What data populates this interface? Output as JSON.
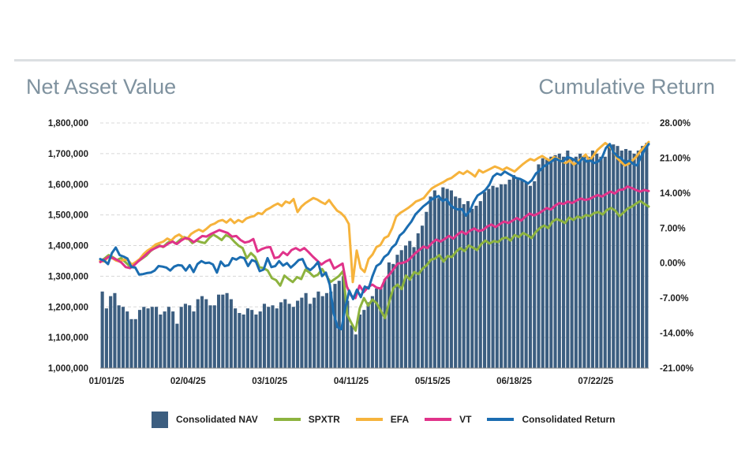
{
  "header": {
    "left_title": "Net Asset Value",
    "right_title": "Cumulative Return"
  },
  "chart_data": {
    "type": "bar+line",
    "x_tick_labels": [
      "01/01/25",
      "02/04/25",
      "03/10/25",
      "04/11/25",
      "05/15/25",
      "06/18/25",
      "07/22/25"
    ],
    "y_left": {
      "min": 1000000,
      "max": 1800000,
      "step": 100000,
      "tick_labels": [
        "1,000,000",
        "1,100,000",
        "1,200,000",
        "1,300,000",
        "1,400,000",
        "1,500,000",
        "1,600,000",
        "1,700,000",
        "1,800,000"
      ]
    },
    "y_right": {
      "min": -21,
      "max": 28,
      "unit": "%",
      "tick_labels": [
        "-21.00%",
        "-14.00%",
        "-7.00%",
        "0.00%",
        "7.00%",
        "14.00%",
        "21.00%",
        "28.00%"
      ]
    },
    "grid": "horizontal dashed",
    "legend_position": "bottom",
    "nav_bar_values": [
      1250000,
      1195000,
      1235000,
      1245000,
      1205000,
      1200000,
      1185000,
      1160000,
      1160000,
      1190000,
      1200000,
      1195000,
      1200000,
      1200000,
      1175000,
      1185000,
      1200000,
      1185000,
      1145000,
      1200000,
      1210000,
      1205000,
      1185000,
      1225000,
      1235000,
      1225000,
      1205000,
      1205000,
      1240000,
      1240000,
      1245000,
      1225000,
      1195000,
      1180000,
      1175000,
      1195000,
      1190000,
      1175000,
      1185000,
      1210000,
      1200000,
      1205000,
      1195000,
      1215000,
      1225000,
      1210000,
      1200000,
      1220000,
      1230000,
      1245000,
      1210000,
      1230000,
      1250000,
      1235000,
      1245000,
      1250000,
      1275000,
      1285000,
      1300000,
      1220000,
      1140000,
      1110000,
      1175000,
      1190000,
      1215000,
      1235000,
      1260000,
      1260000,
      1290000,
      1345000,
      1340000,
      1370000,
      1385000,
      1400000,
      1415000,
      1395000,
      1440000,
      1465000,
      1510000,
      1560000,
      1580000,
      1555000,
      1590000,
      1585000,
      1580000,
      1560000,
      1555000,
      1535000,
      1545000,
      1520000,
      1530000,
      1545000,
      1575000,
      1585000,
      1595000,
      1590000,
      1600000,
      1600000,
      1615000,
      1630000,
      1620000,
      1615000,
      1605000,
      1595000,
      1610000,
      1665000,
      1685000,
      1685000,
      1690000,
      1695000,
      1700000,
      1690000,
      1710000,
      1685000,
      1690000,
      1700000,
      1690000,
      1690000,
      1710000,
      1700000,
      1690000,
      1690000,
      1725000,
      1730000,
      1725000,
      1710000,
      1715000,
      1710000,
      1700000,
      1710000,
      1725000,
      1735000
    ],
    "series": [
      {
        "name": "SPXTR",
        "color": "#8db33f",
        "values": [
          0.4,
          0.9,
          1.6,
          1.2,
          0.6,
          1.0,
          0.2,
          -0.6,
          -0.3,
          0.3,
          0.9,
          1.5,
          2.4,
          3.0,
          3.6,
          3.2,
          4.0,
          4.5,
          3.9,
          4.6,
          5.2,
          4.9,
          4.0,
          4.5,
          4.2,
          4.0,
          5.0,
          5.7,
          5.2,
          4.6,
          5.6,
          5.2,
          4.3,
          3.5,
          3.0,
          1.0,
          2.0,
          1.2,
          -0.8,
          -1.0,
          -1.5,
          -3.0,
          -3.4,
          -4.5,
          -2.5,
          -3.2,
          -3.8,
          -2.8,
          -3.2,
          -1.3,
          -1.9,
          -2.7,
          -2.3,
          -1.2,
          -2.5,
          -3.8,
          -3.2,
          -2.6,
          -1.6,
          -10.3,
          -12.0,
          -13.5,
          -9.0,
          -7.0,
          -8.5,
          -7.3,
          -8.0,
          -9.5,
          -11.0,
          -7.8,
          -5.0,
          -4.3,
          -5.2,
          -2.5,
          -3.3,
          -1.8,
          -2.2,
          -1.1,
          -0.4,
          0.7,
          0.9,
          1.6,
          0.3,
          1.4,
          1.2,
          2.3,
          3.0,
          2.4,
          3.5,
          3.1,
          2.6,
          3.8,
          4.5,
          3.9,
          4.4,
          4.2,
          4.9,
          5.1,
          4.5,
          5.6,
          5.2,
          6.0,
          5.6,
          5.0,
          6.2,
          7.0,
          7.5,
          7.0,
          8.3,
          8.8,
          8.5,
          8.0,
          9.1,
          8.6,
          9.3,
          9.0,
          9.6,
          9.4,
          10.0,
          10.2,
          9.7,
          10.6,
          11.0,
          10.5,
          9.4,
          10.1,
          10.9,
          11.3,
          11.9,
          12.4,
          11.8,
          11.3
        ]
      },
      {
        "name": "EFA",
        "color": "#f6b33c",
        "values": [
          0.5,
          0.3,
          1.2,
          1.0,
          0.5,
          0.3,
          0.7,
          0.6,
          -0.3,
          0.2,
          0.8,
          1.8,
          2.5,
          3.0,
          3.7,
          4.0,
          4.3,
          4.9,
          4.5,
          5.3,
          5.7,
          5.1,
          4.8,
          5.8,
          6.3,
          6.7,
          6.3,
          6.9,
          7.6,
          7.9,
          8.4,
          8.6,
          8.1,
          8.8,
          8.0,
          8.6,
          8.2,
          8.9,
          9.2,
          9.4,
          10.0,
          9.8,
          10.6,
          11.0,
          11.5,
          11.9,
          11.4,
          12.3,
          12.0,
          12.8,
          10.2,
          11.3,
          12.0,
          12.5,
          13.0,
          12.7,
          12.2,
          11.8,
          12.6,
          11.5,
          10.5,
          10.0,
          9.2,
          7.8,
          -3.8,
          2.5,
          -1.0,
          -1.8,
          0.8,
          1.7,
          3.2,
          3.6,
          5.0,
          5.4,
          7.0,
          9.3,
          10.0,
          10.5,
          11.0,
          11.6,
          12.3,
          12.6,
          13.0,
          14.0,
          14.9,
          15.4,
          15.8,
          16.2,
          16.7,
          17.0,
          17.6,
          18.2,
          17.8,
          18.4,
          17.9,
          17.3,
          18.6,
          18.1,
          18.5,
          18.9,
          19.3,
          19.0,
          18.6,
          19.1,
          18.7,
          18.3,
          19.0,
          19.7,
          20.3,
          20.8,
          20.5,
          21.0,
          21.4,
          20.9,
          20.4,
          21.2,
          20.8,
          20.3,
          20.0,
          20.5,
          19.7,
          20.3,
          20.9,
          21.7,
          20.5,
          21.5,
          22.6,
          23.3,
          24.0,
          23.4,
          22.4,
          21.0,
          20.2,
          19.5,
          19.9,
          20.6,
          21.4,
          22.5,
          23.3,
          24.2
        ]
      },
      {
        "name": "VT",
        "color": "#e0338a",
        "values": [
          0.2,
          0.7,
          1.3,
          1.0,
          0.6,
          0.1,
          -0.8,
          -1.0,
          -0.4,
          0.4,
          1.1,
          1.9,
          2.6,
          3.0,
          3.4,
          3.3,
          3.9,
          4.3,
          3.8,
          4.5,
          5.0,
          4.8,
          4.2,
          4.8,
          5.4,
          5.3,
          5.8,
          6.2,
          6.6,
          6.3,
          6.0,
          5.3,
          5.4,
          4.6,
          4.1,
          4.3,
          4.8,
          2.3,
          2.8,
          3.1,
          3.2,
          1.0,
          1.2,
          2.2,
          1.6,
          2.6,
          3.0,
          2.5,
          3.0,
          2.2,
          1.3,
          0.5,
          -0.3,
          0.3,
          0.7,
          -1.1,
          -0.6,
          -0.1,
          -4.7,
          -6.5,
          -7.0,
          -4.5,
          -5.8,
          -4.8,
          -4.3,
          -4.9,
          -5.1,
          -3.2,
          -2.3,
          -1.2,
          -0.1,
          0.0,
          0.3,
          1.0,
          1.9,
          2.6,
          3.3,
          3.0,
          4.0,
          4.7,
          4.3,
          4.8,
          5.4,
          4.9,
          5.7,
          6.3,
          5.8,
          6.5,
          6.9,
          6.4,
          6.6,
          7.3,
          7.7,
          7.2,
          7.8,
          8.3,
          8.0,
          8.5,
          9.0,
          8.5,
          9.3,
          9.9,
          9.5,
          9.9,
          10.4,
          11.0,
          10.7,
          11.5,
          12.0,
          11.8,
          12.3,
          12.0,
          12.5,
          12.9,
          12.6,
          12.8,
          13.2,
          13.6,
          13.3,
          13.8,
          14.3,
          13.9,
          14.6,
          14.7,
          15.3,
          15.0,
          14.6,
          14.3,
          14.6,
          14.4
        ]
      },
      {
        "name": "Consolidated Return",
        "color": "#1b6db1",
        "values": [
          0.8,
          0.5,
          -0.2,
          2.0,
          3.1,
          1.6,
          1.3,
          0.9,
          -0.8,
          -0.9,
          -2.3,
          -2.2,
          -2.0,
          -1.9,
          -1.5,
          -0.6,
          -0.7,
          -0.9,
          -1.5,
          -0.7,
          -0.4,
          -0.5,
          -1.5,
          -0.4,
          -1.8,
          -0.2,
          0.4,
          0.0,
          0.1,
          -0.3,
          -1.9,
          0.3,
          -0.6,
          -0.4,
          1.0,
          0.7,
          1.2,
          1.0,
          -0.6,
          0.6,
          0.3,
          -1.6,
          -1.3,
          1.0,
          -0.8,
          -0.6,
          0.4,
          -0.5,
          0.0,
          -0.9,
          -0.2,
          0.6,
          0.8,
          -0.9,
          -1.4,
          -0.7,
          0.2,
          -2.6,
          -1.9,
          -4.3,
          -10.0,
          -12.8,
          -13.2,
          -9.0,
          -5.5,
          -7.2,
          -5.3,
          -6.8,
          -4.7,
          -5.1,
          -2.6,
          -0.6,
          -0.1,
          1.2,
          1.8,
          3.1,
          3.8,
          5.5,
          6.2,
          7.3,
          8.3,
          9.7,
          10.5,
          11.3,
          11.9,
          12.6,
          13.1,
          13.4,
          12.4,
          12.8,
          11.6,
          11.0,
          10.7,
          10.8,
          9.5,
          10.4,
          12.2,
          13.5,
          14.0,
          14.6,
          15.6,
          17.3,
          17.9,
          17.6,
          18.3,
          17.8,
          17.4,
          17.0,
          16.8,
          16.4,
          15.9,
          16.6,
          17.9,
          18.5,
          19.3,
          19.8,
          20.3,
          20.9,
          20.5,
          20.3,
          21.2,
          21.0,
          20.6,
          19.9,
          21.0,
          20.3,
          20.5,
          20.0,
          20.3,
          21.1,
          23.0,
          23.8,
          22.1,
          21.3,
          20.9,
          20.0,
          20.5,
          19.8,
          19.5,
          21.2,
          22.7,
          23.8
        ]
      }
    ]
  },
  "legend": {
    "nav_label": "Consolidated NAV",
    "spxtr_label": "SPXTR",
    "efa_label": "EFA",
    "vt_label": "VT",
    "return_label": "Consolidated Return"
  },
  "colors": {
    "nav_bar": "#3c5e80",
    "spxtr": "#8db33f",
    "efa": "#f6b33c",
    "vt": "#e0338a",
    "consolidated_return": "#1b6db1",
    "header_text": "#7f929f",
    "grid": "#d8d8d8"
  }
}
